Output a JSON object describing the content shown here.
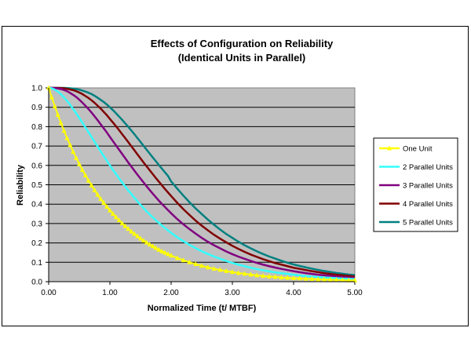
{
  "chart_data": {
    "type": "line",
    "title": [
      "Effects of Configuration on Reliability",
      "(Identical Units in Parallel)"
    ],
    "xlabel": "Normalized Time (t/ MTBF)",
    "ylabel": "Reliability",
    "xlim": [
      0,
      5
    ],
    "ylim": [
      0,
      1
    ],
    "xticks": [
      "0.00",
      "1.00",
      "2.00",
      "3.00",
      "4.00",
      "5.00"
    ],
    "yticks": [
      "0.0",
      "0.1",
      "0.2",
      "0.3",
      "0.4",
      "0.5",
      "0.6",
      "0.7",
      "0.8",
      "0.9",
      "1.0"
    ],
    "grid": true,
    "plot_background": "#c0c0c0",
    "legend_position": "right",
    "x": [
      0,
      0.05,
      0.1,
      0.15,
      0.2,
      0.25,
      0.3,
      0.35,
      0.4,
      0.45,
      0.5,
      0.55,
      0.6,
      0.65,
      0.7,
      0.75,
      0.8,
      0.85,
      0.9,
      0.95,
      1.0,
      1.05,
      1.1,
      1.15,
      1.2,
      1.25,
      1.3,
      1.35,
      1.4,
      1.45,
      1.5,
      1.55,
      1.6,
      1.65,
      1.7,
      1.75,
      1.8,
      1.85,
      1.9,
      1.95,
      2.0,
      2.1,
      2.2,
      2.3,
      2.4,
      2.5,
      2.6,
      2.7,
      2.8,
      2.9,
      3.0,
      3.1,
      3.2,
      3.3,
      3.4,
      3.5,
      3.6,
      3.7,
      3.8,
      3.9,
      4.0,
      4.1,
      4.2,
      4.3,
      4.4,
      4.5,
      4.6,
      4.7,
      4.8,
      4.9,
      5.0
    ],
    "series": [
      {
        "name": "One Unit",
        "color": "#ffff00",
        "marker": "triangle",
        "values": [
          1.0,
          0.951,
          0.905,
          0.861,
          0.819,
          0.779,
          0.741,
          0.705,
          0.67,
          0.638,
          0.607,
          0.577,
          0.549,
          0.522,
          0.497,
          0.472,
          0.449,
          0.427,
          0.407,
          0.387,
          0.368,
          0.35,
          0.333,
          0.317,
          0.301,
          0.287,
          0.273,
          0.259,
          0.247,
          0.235,
          0.223,
          0.212,
          0.202,
          0.192,
          0.183,
          0.174,
          0.165,
          0.157,
          0.15,
          0.142,
          0.135,
          0.122,
          0.111,
          0.1,
          0.091,
          0.082,
          0.074,
          0.067,
          0.061,
          0.055,
          0.05,
          0.045,
          0.041,
          0.037,
          0.033,
          0.03,
          0.027,
          0.025,
          0.022,
          0.02,
          0.018,
          0.017,
          0.015,
          0.014,
          0.012,
          0.011,
          0.01,
          0.009,
          0.008,
          0.007,
          0.007
        ]
      },
      {
        "name": "2 Parallel Units",
        "color": "#33ffff",
        "marker": "none",
        "values": [
          1.0,
          0.998,
          0.991,
          0.981,
          0.967,
          0.951,
          0.933,
          0.913,
          0.891,
          0.869,
          0.845,
          0.821,
          0.796,
          0.772,
          0.747,
          0.722,
          0.697,
          0.672,
          0.648,
          0.625,
          0.6,
          0.577,
          0.555,
          0.533,
          0.512,
          0.491,
          0.471,
          0.452,
          0.433,
          0.414,
          0.397,
          0.38,
          0.363,
          0.347,
          0.332,
          0.317,
          0.303,
          0.289,
          0.277,
          0.264,
          0.252,
          0.229,
          0.209,
          0.19,
          0.173,
          0.157,
          0.143,
          0.13,
          0.118,
          0.107,
          0.097,
          0.088,
          0.08,
          0.072,
          0.065,
          0.059,
          0.053,
          0.048,
          0.044,
          0.04,
          0.036,
          0.032,
          0.029,
          0.027,
          0.024,
          0.022,
          0.02,
          0.018,
          0.016,
          0.015,
          0.013
        ]
      },
      {
        "name": "3 Parallel Units",
        "color": "#800080",
        "marker": "none",
        "values": [
          1.0,
          1.0,
          0.999,
          0.997,
          0.994,
          0.989,
          0.983,
          0.974,
          0.964,
          0.953,
          0.939,
          0.924,
          0.908,
          0.891,
          0.873,
          0.853,
          0.833,
          0.812,
          0.791,
          0.77,
          0.747,
          0.725,
          0.703,
          0.681,
          0.659,
          0.637,
          0.615,
          0.594,
          0.573,
          0.552,
          0.532,
          0.512,
          0.492,
          0.473,
          0.454,
          0.436,
          0.418,
          0.401,
          0.385,
          0.369,
          0.353,
          0.323,
          0.296,
          0.271,
          0.248,
          0.226,
          0.206,
          0.188,
          0.172,
          0.156,
          0.142,
          0.129,
          0.118,
          0.107,
          0.097,
          0.088,
          0.08,
          0.073,
          0.066,
          0.06,
          0.054,
          0.049,
          0.044,
          0.04,
          0.036,
          0.033,
          0.03,
          0.027,
          0.024,
          0.022,
          0.02
        ]
      },
      {
        "name": "4 Parallel Units",
        "color": "#800000",
        "marker": "none",
        "values": [
          1.0,
          1.0,
          1.0,
          1.0,
          0.999,
          0.998,
          0.995,
          0.992,
          0.988,
          0.983,
          0.976,
          0.968,
          0.958,
          0.948,
          0.936,
          0.923,
          0.908,
          0.893,
          0.876,
          0.859,
          0.84,
          0.821,
          0.802,
          0.782,
          0.761,
          0.741,
          0.72,
          0.699,
          0.678,
          0.657,
          0.636,
          0.615,
          0.595,
          0.575,
          0.555,
          0.535,
          0.516,
          0.497,
          0.478,
          0.46,
          0.442,
          0.407,
          0.374,
          0.344,
          0.315,
          0.289,
          0.265,
          0.242,
          0.222,
          0.203,
          0.185,
          0.169,
          0.154,
          0.14,
          0.128,
          0.116,
          0.106,
          0.096,
          0.088,
          0.08,
          0.072,
          0.066,
          0.06,
          0.054,
          0.049,
          0.044,
          0.04,
          0.036,
          0.033,
          0.03,
          0.027
        ]
      },
      {
        "name": "5 Parallel Units",
        "color": "#008080",
        "marker": "none",
        "values": [
          1.0,
          1.0,
          1.0,
          1.0,
          1.0,
          1.0,
          0.999,
          0.998,
          0.996,
          0.994,
          0.991,
          0.986,
          0.981,
          0.975,
          0.968,
          0.959,
          0.949,
          0.938,
          0.927,
          0.914,
          0.9,
          0.885,
          0.869,
          0.852,
          0.835,
          0.817,
          0.799,
          0.78,
          0.761,
          0.741,
          0.721,
          0.701,
          0.681,
          0.661,
          0.641,
          0.622,
          0.602,
          0.583,
          0.564,
          0.545,
          0.517,
          0.48,
          0.444,
          0.41,
          0.378,
          0.349,
          0.32,
          0.294,
          0.269,
          0.246,
          0.226,
          0.206,
          0.188,
          0.172,
          0.157,
          0.143,
          0.13,
          0.119,
          0.108,
          0.098,
          0.089,
          0.081,
          0.074,
          0.067,
          0.061,
          0.055,
          0.05,
          0.045,
          0.041,
          0.037,
          0.034
        ]
      }
    ]
  }
}
